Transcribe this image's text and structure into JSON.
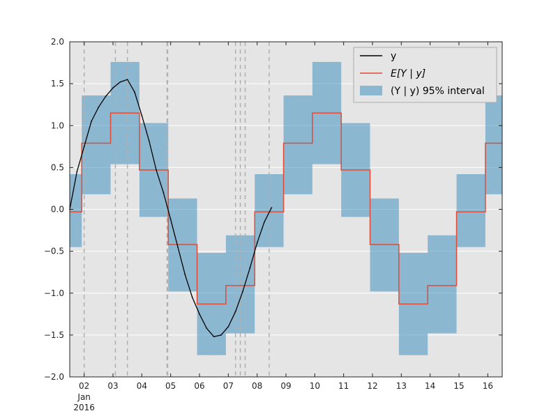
{
  "chart_data": {
    "type": "line",
    "title": "",
    "xlabel": "",
    "ylabel": "",
    "x_axis": {
      "kind": "date",
      "range": [
        "2016-01-01 12:00",
        "2016-01-16 12:00"
      ],
      "tick_dates": [
        "2016-01-02",
        "2016-01-03",
        "2016-01-04",
        "2016-01-05",
        "2016-01-06",
        "2016-01-07",
        "2016-01-08",
        "2016-01-09",
        "2016-01-10",
        "2016-01-11",
        "2016-01-12",
        "2016-01-13",
        "2016-01-14",
        "2016-01-15",
        "2016-01-16"
      ],
      "tick_labels": [
        "02",
        "03",
        "04",
        "05",
        "06",
        "07",
        "08",
        "09",
        "10",
        "11",
        "12",
        "13",
        "14",
        "15",
        "16"
      ],
      "secondary_label": [
        "Jan",
        "2016"
      ]
    },
    "y_axis": {
      "range": [
        -2.0,
        2.0
      ],
      "ticks": [
        -2.0,
        -1.5,
        -1.0,
        -0.5,
        0.0,
        0.5,
        1.0,
        1.5,
        2.0
      ],
      "tick_labels": [
        "−2.0",
        "−1.5",
        "−1.0",
        "−0.5",
        "0.0",
        "0.5",
        "1.0",
        "1.5",
        "2.0"
      ]
    },
    "grid": "horizontal",
    "legend": {
      "placement": "top-right",
      "entries": [
        {
          "label": "y",
          "kind": "line",
          "color": "#000000"
        },
        {
          "label": "E[Y | y]",
          "kind": "line",
          "color": "#e24a33"
        },
        {
          "label": "(Y | y) 95% interval",
          "kind": "patch",
          "color": "#348abd"
        }
      ]
    },
    "colors": {
      "background": "#e5e5e5",
      "observed": "#000000",
      "mean": "#e24a33",
      "interval": "#348abd",
      "vline": "#b0b0b0"
    },
    "step_segments": [
      {
        "start": "2016-01-01 12:00",
        "end": "2016-01-01 22:00",
        "mean": -0.03,
        "lower": -0.45,
        "upper": 0.42
      },
      {
        "start": "2016-01-01 22:00",
        "end": "2016-01-02 22:00",
        "mean": 0.79,
        "lower": 0.18,
        "upper": 1.36
      },
      {
        "start": "2016-01-02 22:00",
        "end": "2016-01-03 22:00",
        "mean": 1.15,
        "lower": 0.54,
        "upper": 1.76
      },
      {
        "start": "2016-01-03 22:00",
        "end": "2016-01-04 22:00",
        "mean": 0.47,
        "lower": -0.09,
        "upper": 1.03
      },
      {
        "start": "2016-01-04 22:00",
        "end": "2016-01-05 22:00",
        "mean": -0.42,
        "lower": -0.98,
        "upper": 0.13
      },
      {
        "start": "2016-01-05 22:00",
        "end": "2016-01-06 22:00",
        "mean": -1.13,
        "lower": -1.74,
        "upper": -0.52
      },
      {
        "start": "2016-01-06 22:00",
        "end": "2016-01-07 22:00",
        "mean": -0.91,
        "lower": -1.48,
        "upper": -0.31
      },
      {
        "start": "2016-01-07 22:00",
        "end": "2016-01-08 22:00",
        "mean": -0.03,
        "lower": -0.45,
        "upper": 0.42
      },
      {
        "start": "2016-01-08 22:00",
        "end": "2016-01-09 22:00",
        "mean": 0.79,
        "lower": 0.18,
        "upper": 1.36
      },
      {
        "start": "2016-01-09 22:00",
        "end": "2016-01-10 22:00",
        "mean": 1.15,
        "lower": 0.54,
        "upper": 1.76
      },
      {
        "start": "2016-01-10 22:00",
        "end": "2016-01-11 22:00",
        "mean": 0.47,
        "lower": -0.09,
        "upper": 1.03
      },
      {
        "start": "2016-01-11 22:00",
        "end": "2016-01-12 22:00",
        "mean": -0.42,
        "lower": -0.98,
        "upper": 0.13
      },
      {
        "start": "2016-01-12 22:00",
        "end": "2016-01-13 22:00",
        "mean": -1.13,
        "lower": -1.74,
        "upper": -0.52
      },
      {
        "start": "2016-01-13 22:00",
        "end": "2016-01-14 22:00",
        "mean": -0.91,
        "lower": -1.48,
        "upper": -0.31
      },
      {
        "start": "2016-01-14 22:00",
        "end": "2016-01-15 22:00",
        "mean": -0.03,
        "lower": -0.45,
        "upper": 0.42
      },
      {
        "start": "2016-01-15 22:00",
        "end": "2016-01-16 12:00",
        "mean": 0.79,
        "lower": 0.18,
        "upper": 1.36
      }
    ],
    "observed": {
      "x": [
        "2016-01-01 12:00",
        "2016-01-01 18:00",
        "2016-01-02 00:00",
        "2016-01-02 06:00",
        "2016-01-02 12:00",
        "2016-01-02 18:00",
        "2016-01-03 00:00",
        "2016-01-03 06:00",
        "2016-01-03 12:00",
        "2016-01-03 18:00",
        "2016-01-04 00:00",
        "2016-01-04 06:00",
        "2016-01-04 12:00",
        "2016-01-04 18:00",
        "2016-01-05 00:00",
        "2016-01-05 06:00",
        "2016-01-05 12:00",
        "2016-01-05 18:00",
        "2016-01-06 00:00",
        "2016-01-06 06:00",
        "2016-01-06 12:00",
        "2016-01-06 18:00",
        "2016-01-07 00:00",
        "2016-01-07 06:00",
        "2016-01-07 12:00",
        "2016-01-07 18:00",
        "2016-01-08 00:00",
        "2016-01-08 06:00",
        "2016-01-08 12:00"
      ],
      "y": [
        0.0,
        0.45,
        0.75,
        1.05,
        1.22,
        1.35,
        1.45,
        1.52,
        1.55,
        1.4,
        1.12,
        0.82,
        0.47,
        0.2,
        -0.12,
        -0.45,
        -0.78,
        -1.05,
        -1.25,
        -1.42,
        -1.52,
        -1.5,
        -1.4,
        -1.22,
        -0.98,
        -0.7,
        -0.4,
        -0.15,
        0.02
      ]
    },
    "vlines": [
      "2016-01-02 00:00",
      "2016-01-03 02:00",
      "2016-01-03 12:00",
      "2016-01-04 21:00",
      "2016-01-04 21:30",
      "2016-01-07 06:00",
      "2016-01-07 10:00",
      "2016-01-07 14:00",
      "2016-01-08 10:00"
    ]
  }
}
